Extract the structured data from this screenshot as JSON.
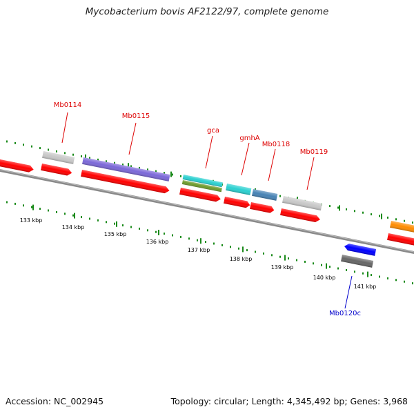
{
  "title": "Mycobacterium bovis AF2122/97, complete genome",
  "footer": {
    "accession": "Accession: NC_002945",
    "summary": "Topology: circular; Length: 4,345,492 bp; Genes: 3,968"
  },
  "colors": {
    "backbone": "#8a8a8a",
    "tick": "#1a8a1a",
    "gene_label_forward": "#dd0000",
    "gene_label_reverse": "#0000cc",
    "scale_label": "#000000"
  },
  "scale_labels": [
    "133 kbp",
    "134 kbp",
    "135 kbp",
    "136 kbp",
    "137 kbp",
    "138 kbp",
    "139 kbp",
    "140 kbp",
    "141 kbp"
  ],
  "gene_labels": [
    {
      "text": "Mb0114",
      "strand": "forward"
    },
    {
      "text": "Mb0115",
      "strand": "forward"
    },
    {
      "text": "gca",
      "strand": "forward"
    },
    {
      "text": "gmhA",
      "strand": "forward"
    },
    {
      "text": "Mb0118",
      "strand": "forward"
    },
    {
      "text": "Mb0119",
      "strand": "forward"
    },
    {
      "text": "Mb0120c",
      "strand": "reverse"
    }
  ],
  "features": [
    {
      "row": "forward-cds",
      "color": "#ff0000"
    },
    {
      "row": "forward-cds",
      "color": "#ff0000"
    },
    {
      "row": "forward-cds",
      "color": "#ff0000"
    },
    {
      "row": "forward-cds",
      "color": "#ff0000"
    },
    {
      "row": "forward-cds",
      "color": "#ff0000"
    },
    {
      "row": "forward-cds",
      "color": "#ff0000"
    },
    {
      "row": "forward-cds",
      "color": "#ff0000"
    },
    {
      "row": "forward-cds",
      "color": "#ff0000"
    },
    {
      "row": "forward-product",
      "color": "#c8c8c8"
    },
    {
      "row": "forward-product",
      "color": "#7b68d8"
    },
    {
      "row": "forward-product",
      "color": "#2ad0d0"
    },
    {
      "row": "forward-product",
      "color": "#6e9b2c"
    },
    {
      "row": "forward-product",
      "color": "#2ad0d0"
    },
    {
      "row": "forward-product",
      "color": "#4682b4"
    },
    {
      "row": "forward-product",
      "color": "#c8c8c8"
    },
    {
      "row": "forward-product",
      "color": "#ff8c00"
    },
    {
      "row": "reverse-cds",
      "color": "#0000ff"
    },
    {
      "row": "reverse-product",
      "color": "#666666"
    }
  ]
}
